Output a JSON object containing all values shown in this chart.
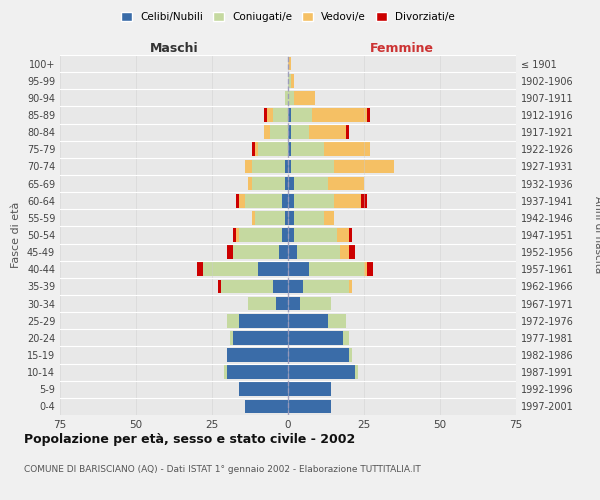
{
  "age_groups": [
    "0-4",
    "5-9",
    "10-14",
    "15-19",
    "20-24",
    "25-29",
    "30-34",
    "35-39",
    "40-44",
    "45-49",
    "50-54",
    "55-59",
    "60-64",
    "65-69",
    "70-74",
    "75-79",
    "80-84",
    "85-89",
    "90-94",
    "95-99",
    "100+"
  ],
  "birth_years": [
    "1997-2001",
    "1992-1996",
    "1987-1991",
    "1982-1986",
    "1977-1981",
    "1972-1976",
    "1967-1971",
    "1962-1966",
    "1957-1961",
    "1952-1956",
    "1947-1951",
    "1942-1946",
    "1937-1941",
    "1932-1936",
    "1927-1931",
    "1922-1926",
    "1917-1921",
    "1912-1916",
    "1907-1911",
    "1902-1906",
    "≤ 1901"
  ],
  "males": {
    "celibi": [
      14,
      16,
      20,
      20,
      18,
      16,
      4,
      5,
      10,
      3,
      2,
      1,
      2,
      1,
      1,
      0,
      0,
      0,
      0,
      0,
      0
    ],
    "coniugati": [
      0,
      0,
      1,
      0,
      1,
      4,
      9,
      17,
      18,
      15,
      14,
      10,
      12,
      11,
      11,
      10,
      6,
      5,
      1,
      0,
      0
    ],
    "vedovi": [
      0,
      0,
      0,
      0,
      0,
      0,
      0,
      0,
      0,
      0,
      1,
      1,
      2,
      1,
      2,
      1,
      2,
      2,
      0,
      0,
      0
    ],
    "divorziati": [
      0,
      0,
      0,
      0,
      0,
      0,
      0,
      1,
      2,
      2,
      1,
      0,
      1,
      0,
      0,
      1,
      0,
      1,
      0,
      0,
      0
    ]
  },
  "females": {
    "nubili": [
      14,
      14,
      22,
      20,
      18,
      13,
      4,
      5,
      7,
      3,
      2,
      2,
      2,
      2,
      1,
      1,
      1,
      1,
      0,
      0,
      0
    ],
    "coniugate": [
      0,
      0,
      1,
      1,
      2,
      6,
      10,
      15,
      18,
      14,
      14,
      10,
      13,
      11,
      14,
      11,
      6,
      7,
      2,
      1,
      0
    ],
    "vedove": [
      0,
      0,
      0,
      0,
      0,
      0,
      0,
      1,
      1,
      3,
      4,
      3,
      9,
      12,
      20,
      15,
      12,
      18,
      7,
      1,
      1
    ],
    "divorziate": [
      0,
      0,
      0,
      0,
      0,
      0,
      0,
      0,
      2,
      2,
      1,
      0,
      2,
      0,
      0,
      0,
      1,
      1,
      0,
      0,
      0
    ]
  },
  "colors": {
    "celibi": "#3a6ca8",
    "coniugati": "#c5d9a0",
    "vedovi": "#f5c064",
    "divorziati": "#cc0000"
  },
  "title": "Popolazione per età, sesso e stato civile - 2002",
  "subtitle": "COMUNE DI BARISCIANO (AQ) - Dati ISTAT 1° gennaio 2002 - Elaborazione TUTTITALIA.IT",
  "ylabel": "Fasce di età",
  "ylabel_right": "Anni di nascita",
  "xlabel_maschi": "Maschi",
  "xlabel_femmine": "Femmine",
  "xlim": 75,
  "background_color": "#f0f0f0",
  "plot_background": "#e8e8e8",
  "legend_labels": [
    "Celibi/Nubili",
    "Coniugati/e",
    "Vedovi/e",
    "Divorziati/e"
  ]
}
